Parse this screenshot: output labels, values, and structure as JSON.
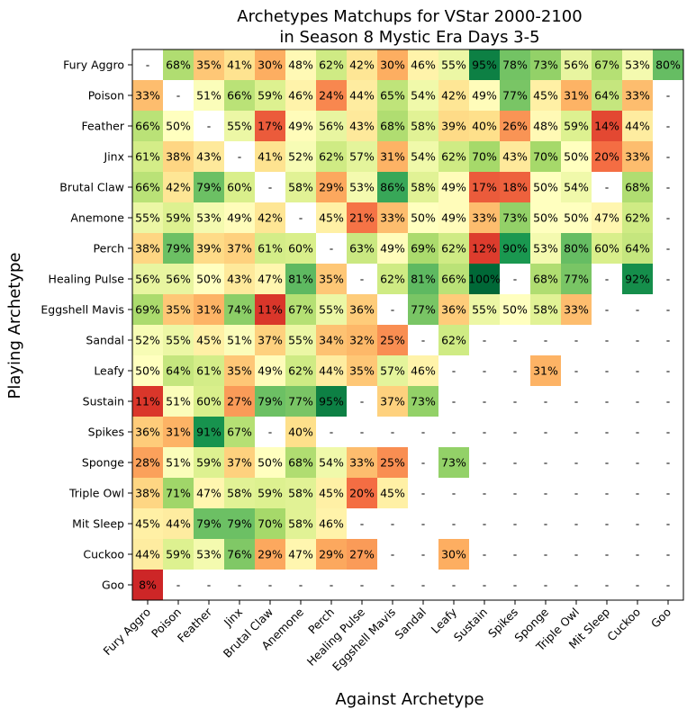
{
  "chart_data": {
    "type": "heatmap",
    "title_lines": [
      "Archetypes Matchups for VStar 2000-2100",
      "in Season 8 Mystic Era Days 3-5"
    ],
    "xlabel": "Against Archetype",
    "ylabel": "Playing Archetype",
    "missing_marker": "-",
    "colormap": "RdYlGn",
    "value_range": [
      0,
      100
    ],
    "columns": [
      "Fury Aggro",
      "Poison",
      "Feather",
      "Jinx",
      "Brutal Claw",
      "Anemone",
      "Perch",
      "Healing Pulse",
      "Eggshell Mavis",
      "Sandal",
      "Leafy",
      "Sustain",
      "Spikes",
      "Sponge",
      "Triple Owl",
      "Mit Sleep",
      "Cuckoo",
      "Goo"
    ],
    "rows": [
      "Fury Aggro",
      "Poison",
      "Feather",
      "Jinx",
      "Brutal Claw",
      "Anemone",
      "Perch",
      "Healing Pulse",
      "Eggshell Mavis",
      "Sandal",
      "Leafy",
      "Sustain",
      "Spikes",
      "Sponge",
      "Triple Owl",
      "Mit Sleep",
      "Cuckoo",
      "Goo"
    ],
    "values": [
      [
        null,
        68,
        35,
        41,
        30,
        48,
        62,
        42,
        30,
        46,
        55,
        95,
        78,
        73,
        56,
        67,
        53,
        80
      ],
      [
        33,
        null,
        51,
        66,
        59,
        46,
        24,
        44,
        65,
        54,
        42,
        49,
        77,
        45,
        31,
        64,
        33,
        null
      ],
      [
        66,
        50,
        null,
        55,
        17,
        49,
        56,
        43,
        68,
        58,
        39,
        40,
        26,
        48,
        59,
        14,
        44,
        null
      ],
      [
        61,
        38,
        43,
        null,
        41,
        52,
        62,
        57,
        31,
        54,
        62,
        70,
        43,
        70,
        50,
        20,
        33,
        null
      ],
      [
        66,
        42,
        79,
        60,
        null,
        58,
        29,
        53,
        86,
        58,
        49,
        17,
        18,
        50,
        54,
        null,
        68,
        null
      ],
      [
        55,
        59,
        53,
        49,
        42,
        null,
        45,
        21,
        33,
        50,
        49,
        33,
        73,
        50,
        50,
        47,
        62,
        null
      ],
      [
        38,
        79,
        39,
        37,
        61,
        60,
        null,
        63,
        49,
        69,
        62,
        12,
        90,
        53,
        80,
        60,
        64,
        null
      ],
      [
        56,
        56,
        50,
        43,
        47,
        81,
        35,
        null,
        62,
        81,
        66,
        100,
        null,
        68,
        77,
        null,
        92,
        null
      ],
      [
        69,
        35,
        31,
        74,
        11,
        67,
        55,
        36,
        null,
        77,
        36,
        55,
        50,
        58,
        33,
        null,
        null,
        null
      ],
      [
        52,
        55,
        45,
        51,
        37,
        55,
        34,
        32,
        25,
        null,
        62,
        null,
        null,
        null,
        null,
        null,
        null,
        null
      ],
      [
        50,
        64,
        61,
        35,
        49,
        62,
        44,
        35,
        57,
        46,
        null,
        null,
        null,
        31,
        null,
        null,
        null,
        null
      ],
      [
        11,
        51,
        60,
        27,
        79,
        77,
        95,
        null,
        37,
        73,
        null,
        null,
        null,
        null,
        null,
        null,
        null,
        null
      ],
      [
        36,
        31,
        91,
        67,
        null,
        40,
        null,
        null,
        null,
        null,
        null,
        null,
        null,
        null,
        null,
        null,
        null,
        null
      ],
      [
        28,
        51,
        59,
        37,
        50,
        68,
        54,
        33,
        25,
        null,
        73,
        null,
        null,
        null,
        null,
        null,
        null,
        null
      ],
      [
        38,
        71,
        47,
        58,
        59,
        58,
        45,
        20,
        45,
        null,
        null,
        null,
        null,
        null,
        null,
        null,
        null,
        null
      ],
      [
        45,
        44,
        79,
        79,
        70,
        58,
        46,
        null,
        null,
        null,
        null,
        null,
        null,
        null,
        null,
        null,
        null,
        null
      ],
      [
        44,
        59,
        53,
        76,
        29,
        47,
        29,
        27,
        null,
        null,
        30,
        null,
        null,
        null,
        null,
        null,
        null,
        null
      ],
      [
        8,
        null,
        null,
        null,
        null,
        null,
        null,
        null,
        null,
        null,
        null,
        null,
        null,
        null,
        null,
        null,
        null,
        null
      ]
    ]
  }
}
